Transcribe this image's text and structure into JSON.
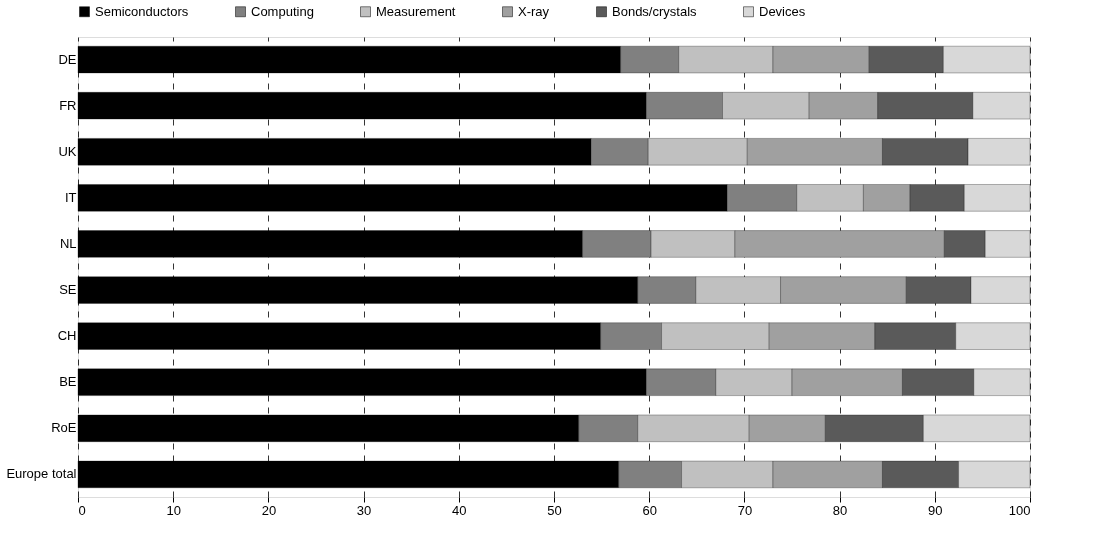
{
  "chart_data": {
    "type": "bar",
    "orientation": "horizontal",
    "stacked": true,
    "categories": [
      "DE",
      "FR",
      "UK",
      "IT",
      "NL",
      "SE",
      "CH",
      "BE",
      "RoE",
      "Europe total"
    ],
    "series": [
      {
        "name": "Semiconductors",
        "color": "#000000",
        "values": [
          57.0,
          59.7,
          53.9,
          68.2,
          53.0,
          58.8,
          54.9,
          59.7,
          52.6,
          56.8
        ]
      },
      {
        "name": "Computing",
        "color": "#808080",
        "values": [
          6.1,
          8.0,
          6.0,
          7.3,
          7.2,
          6.1,
          6.4,
          7.3,
          6.2,
          6.6
        ]
      },
      {
        "name": "Measurement",
        "color": "#c0c0c0",
        "values": [
          9.9,
          9.1,
          10.4,
          7.0,
          8.8,
          8.9,
          11.3,
          8.0,
          11.7,
          9.6
        ]
      },
      {
        "name": "X-ray",
        "color": "#a0a0a0",
        "values": [
          10.1,
          7.2,
          14.2,
          4.9,
          22.0,
          13.2,
          11.1,
          11.6,
          8.0,
          11.5
        ]
      },
      {
        "name": "Bonds/crystals",
        "color": "#5a5a5a",
        "values": [
          7.8,
          10.0,
          9.0,
          5.7,
          4.3,
          6.8,
          8.5,
          7.5,
          10.3,
          8.0
        ]
      },
      {
        "name": "Devices",
        "color": "#d8d8d8",
        "values": [
          9.1,
          6.0,
          6.5,
          6.9,
          4.7,
          6.2,
          7.8,
          5.9,
          11.2,
          7.5
        ]
      }
    ],
    "xlim": [
      0,
      100
    ],
    "xticks": [
      0,
      10,
      20,
      30,
      40,
      50,
      60,
      70,
      80,
      90,
      100
    ],
    "grid": "x",
    "legend": "top"
  }
}
